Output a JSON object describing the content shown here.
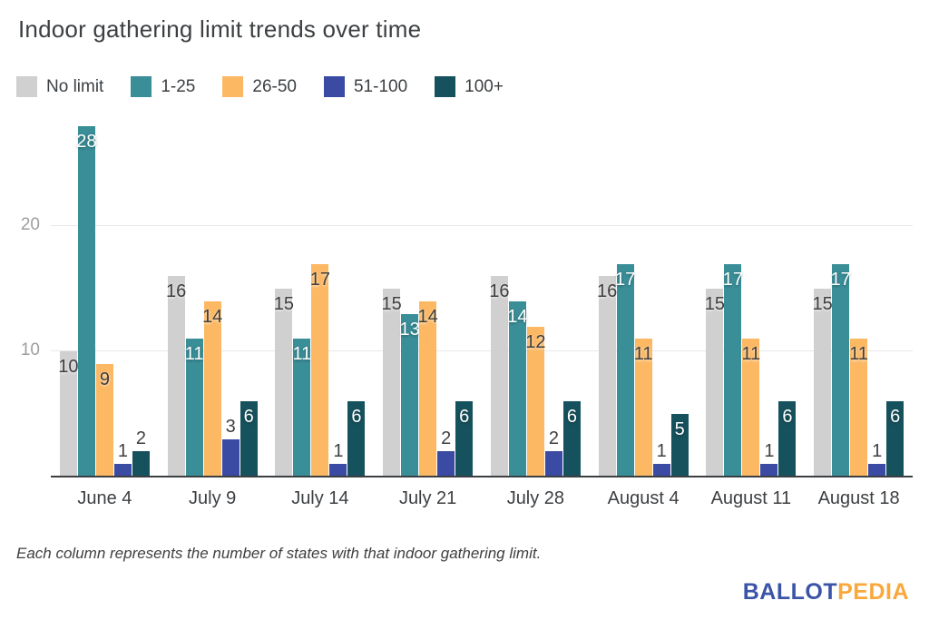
{
  "chart_data": {
    "type": "bar",
    "title": "Indoor gathering limit trends over time",
    "categories": [
      "June 4",
      "July 9",
      "July 14",
      "July 21",
      "July 28",
      "August 4",
      "August 11",
      "August 18"
    ],
    "series": [
      {
        "name": "No limit",
        "color": "#d0d0d0",
        "label_style": "dark",
        "values": [
          10,
          16,
          15,
          15,
          16,
          16,
          15,
          15
        ]
      },
      {
        "name": "1-25",
        "color": "#3a8e98",
        "label_style": "light",
        "values": [
          28,
          11,
          11,
          13,
          14,
          17,
          17,
          17
        ]
      },
      {
        "name": "26-50",
        "color": "#fcb863",
        "label_style": "dark",
        "values": [
          9,
          14,
          17,
          14,
          12,
          11,
          11,
          11
        ]
      },
      {
        "name": "51-100",
        "color": "#3b4ba3",
        "label_style": "dark",
        "values": [
          1,
          3,
          1,
          2,
          2,
          1,
          1,
          1
        ]
      },
      {
        "name": "100+",
        "color": "#16525d",
        "label_style": "light",
        "values": [
          2,
          6,
          6,
          6,
          6,
          5,
          6,
          6
        ]
      }
    ],
    "ylabel": "",
    "xlabel": "",
    "y_ticks": [
      10,
      20
    ],
    "ylim": [
      0,
      28
    ],
    "grid": true,
    "legend_position": "top",
    "inside_label_min_value": 5
  },
  "footer": {
    "note": "Each column represents the number of states with that indoor gathering limit.",
    "logo_part1": "BALLOT",
    "logo_part2": "PEDIA",
    "logo_color1": "#3b54a8",
    "logo_color2": "#f9a83c"
  },
  "colors": {
    "title_text": "#3c4043",
    "axis_text": "#9e9e9e",
    "gridline": "#e8e8e8",
    "baseline": "#3b3f42"
  }
}
